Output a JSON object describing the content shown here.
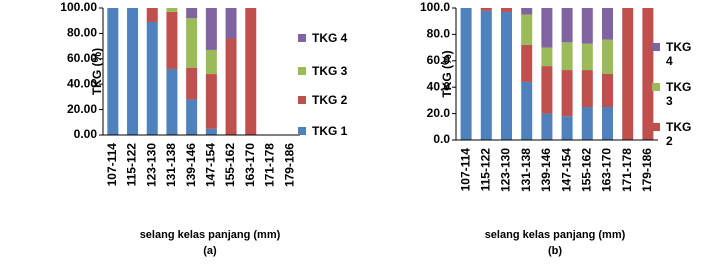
{
  "chart_data": [
    {
      "type": "bar",
      "stacked": true,
      "caption": "(a)",
      "ylabel": "TKG (%)",
      "xlabel": "selang kelas panjang (mm)",
      "categories": [
        "107-114",
        "115-122",
        "123-130",
        "131-138",
        "139-146",
        "147-154",
        "155-162",
        "163-170",
        "171-178",
        "179-186"
      ],
      "series": [
        {
          "name": "TKG 1",
          "color": "#4f81bd",
          "values": [
            100,
            100,
            89,
            52,
            28,
            5,
            0,
            0,
            0,
            0
          ]
        },
        {
          "name": "TKG 2",
          "color": "#c0504d",
          "values": [
            0,
            0,
            11,
            45,
            25,
            43,
            76,
            100,
            0,
            0
          ]
        },
        {
          "name": "TKG 3",
          "color": "#9bbb59",
          "values": [
            0,
            0,
            0,
            3,
            39,
            19,
            0,
            0,
            0,
            0
          ]
        },
        {
          "name": "TKG 4",
          "color": "#8064a2",
          "values": [
            0,
            0,
            0,
            0,
            8,
            33,
            24,
            0,
            0,
            0
          ]
        }
      ],
      "ylim": [
        0,
        100
      ],
      "yticks": [
        {
          "value": 0,
          "label": "0.00"
        },
        {
          "value": 20,
          "label": "20.00"
        },
        {
          "value": 40,
          "label": "40.00"
        },
        {
          "value": 60,
          "label": "60.00"
        },
        {
          "value": 80,
          "label": "80.00"
        },
        {
          "value": 100,
          "label": "100.00"
        }
      ]
    },
    {
      "type": "bar",
      "stacked": true,
      "caption": "(b)",
      "ylabel": "TKG (%)",
      "xlabel": "selang kelas panjang (mm)",
      "categories": [
        "107-114",
        "115-122",
        "123-130",
        "131-138",
        "139-146",
        "147-154",
        "155-162",
        "163-170",
        "171-178",
        "179-186"
      ],
      "series": [
        {
          "name": "TKG 1",
          "color": "#4f81bd",
          "values": [
            100,
            98,
            97,
            44,
            20,
            18,
            25,
            25,
            0,
            0
          ]
        },
        {
          "name": "TKG 2",
          "color": "#c0504d",
          "values": [
            0,
            2,
            3,
            28,
            36,
            35,
            28,
            25,
            100,
            100
          ]
        },
        {
          "name": "TKG 3",
          "color": "#9bbb59",
          "values": [
            0,
            0,
            0,
            23,
            14,
            21,
            20,
            26,
            0,
            0
          ]
        },
        {
          "name": "TKG 4",
          "color": "#8064a2",
          "values": [
            0,
            0,
            0,
            5,
            30,
            26,
            27,
            24,
            0,
            0
          ]
        }
      ],
      "ylim": [
        0,
        100
      ],
      "yticks": [
        {
          "value": 0,
          "label": "0.0"
        },
        {
          "value": 20,
          "label": "20.0"
        },
        {
          "value": 40,
          "label": "40.0"
        },
        {
          "value": 60,
          "label": "60.0"
        },
        {
          "value": 80,
          "label": "80.0"
        },
        {
          "value": 100,
          "label": "100.0"
        }
      ]
    }
  ]
}
